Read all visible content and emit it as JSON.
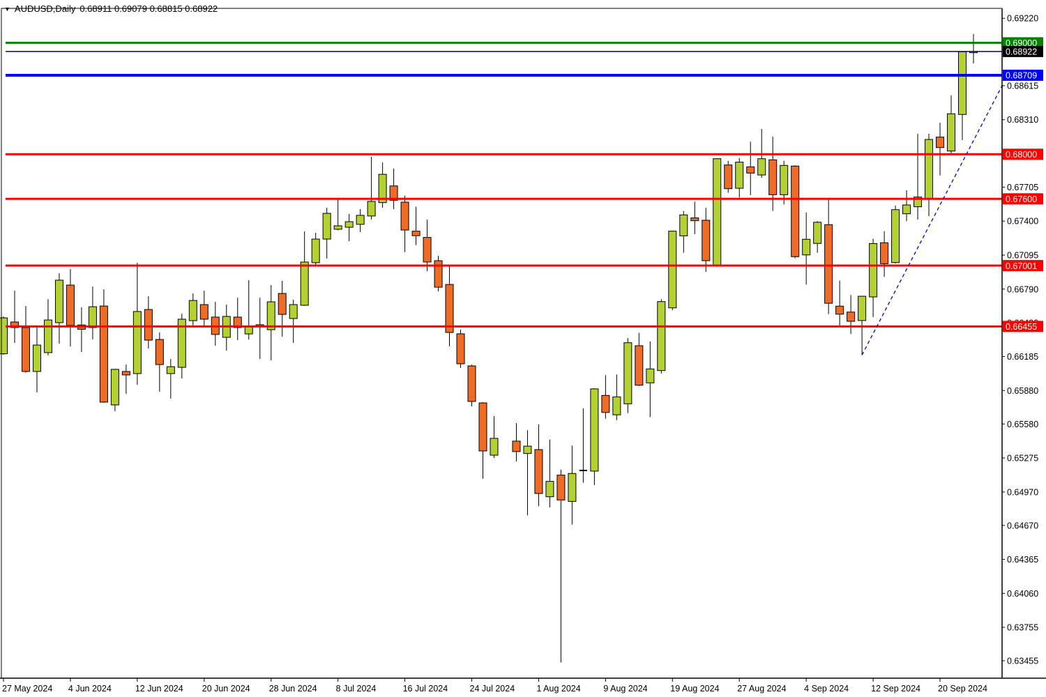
{
  "window": {
    "app": "trading-chart-terminal",
    "title_symbol": "AUDUSD,Daily",
    "title_quotes": "0.68911 0.69079 0.68815 0.68922"
  },
  "colors": {
    "background": "#ffffff",
    "bull_body": "#b3d133",
    "bear_body": "#ef6c26",
    "candle_outline": "#000000",
    "wick": "#000000",
    "axis": "#000000",
    "level_red": "#ff0000",
    "level_green": "#028402",
    "level_blue": "#0000ff",
    "current_price_line": "#000080",
    "trendline_blue": "#0000cc",
    "badge_text": "#ffffff"
  },
  "chart_data": {
    "type": "candlestick",
    "symbol": "AUDUSD",
    "period": "Daily",
    "current_ohlc": {
      "open": 0.68911,
      "high": 0.69079,
      "low": 0.68815,
      "close": 0.68922
    },
    "ylim": [
      0.63299,
      0.69309
    ],
    "grid": false,
    "y_ticks": [
      0.6922,
      0.68615,
      0.6831,
      0.67705,
      0.674,
      0.67095,
      0.6679,
      0.6649,
      0.66185,
      0.6588,
      0.6558,
      0.65275,
      0.6497,
      0.6467,
      0.64365,
      0.6406,
      0.63755,
      0.63455
    ],
    "x_labels": [
      {
        "slot": 0,
        "label": "27 May 2024"
      },
      {
        "slot": 6,
        "label": "4 Jun 2024"
      },
      {
        "slot": 12,
        "label": "12 Jun 2024"
      },
      {
        "slot": 18,
        "label": "20 Jun 2024"
      },
      {
        "slot": 24,
        "label": "28 Jun 2024"
      },
      {
        "slot": 30,
        "label": "8 Jul 2024"
      },
      {
        "slot": 36,
        "label": "16 Jul 2024"
      },
      {
        "slot": 42,
        "label": "24 Jul 2024"
      },
      {
        "slot": 48,
        "label": "1 Aug 2024"
      },
      {
        "slot": 54,
        "label": "9 Aug 2024"
      },
      {
        "slot": 60,
        "label": "19 Aug 2024"
      },
      {
        "slot": 66,
        "label": "27 Aug 2024"
      },
      {
        "slot": 72,
        "label": "4 Sep 2024"
      },
      {
        "slot": 78,
        "label": "12 Sep 2024"
      },
      {
        "slot": 84,
        "label": "20 Sep 2024"
      }
    ],
    "h_lines": [
      {
        "price": 0.69,
        "badge": "0.69000",
        "color_key": "level_green",
        "width": 3
      },
      {
        "price": 0.68922,
        "badge": "0.68922",
        "color_key": "current_price_line",
        "width": 1.6,
        "badge_bg": "#000000"
      },
      {
        "price": 0.68709,
        "badge": "0.68709",
        "color_key": "level_blue",
        "width": 4
      },
      {
        "price": 0.68,
        "badge": "0.68000",
        "color_key": "level_red",
        "width": 3
      },
      {
        "price": 0.676,
        "badge": "0.67600",
        "color_key": "level_red",
        "width": 3
      },
      {
        "price": 0.67001,
        "badge": "0.67001",
        "color_key": "level_red",
        "width": 3
      },
      {
        "price": 0.66455,
        "badge": "0.66455",
        "color_key": "level_red",
        "width": 3
      }
    ],
    "trendline": {
      "style": "dashed",
      "from": {
        "slot": 77,
        "price": 0.66199
      },
      "to_right_edge_price": 0.68615
    },
    "columns": [
      "date",
      "open",
      "high",
      "low",
      "close"
    ],
    "candles": [
      [
        "2024-05-27",
        0.6621,
        0.66545,
        0.662,
        0.66532
      ],
      [
        "2024-05-28",
        0.66495,
        0.66776,
        0.66307,
        0.66445
      ],
      [
        "2024-05-29",
        0.66445,
        0.66638,
        0.6604,
        0.66051
      ],
      [
        "2024-05-30",
        0.66051,
        0.66457,
        0.65863,
        0.66288
      ],
      [
        "2024-05-31",
        0.6622,
        0.667,
        0.66195,
        0.66513
      ],
      [
        "2024-06-03",
        0.66489,
        0.66933,
        0.66301,
        0.6687
      ],
      [
        "2024-06-04",
        0.66826,
        0.6697,
        0.66276,
        0.66464
      ],
      [
        "2024-06-05",
        0.66468,
        0.66626,
        0.66226,
        0.6643
      ],
      [
        "2024-06-06",
        0.66445,
        0.66813,
        0.66339,
        0.66632
      ],
      [
        "2024-06-07",
        0.66638,
        0.66788,
        0.6577,
        0.65776
      ],
      [
        "2024-06-10",
        0.65751,
        0.66075,
        0.65694,
        0.6607
      ],
      [
        "2024-06-11",
        0.66051,
        0.66113,
        0.6585,
        0.6602
      ],
      [
        "2024-06-12",
        0.66032,
        0.67026,
        0.65932,
        0.66589
      ],
      [
        "2024-06-13",
        0.66607,
        0.66726,
        0.66257,
        0.66332
      ],
      [
        "2024-06-14",
        0.66338,
        0.66401,
        0.65869,
        0.66113
      ],
      [
        "2024-06-17",
        0.66032,
        0.66163,
        0.65807,
        0.66094
      ],
      [
        "2024-06-18",
        0.66088,
        0.6657,
        0.65988,
        0.6652
      ],
      [
        "2024-06-19",
        0.66507,
        0.66751,
        0.66445,
        0.66688
      ],
      [
        "2024-06-20",
        0.66651,
        0.66776,
        0.66451,
        0.6652
      ],
      [
        "2024-06-21",
        0.66539,
        0.66676,
        0.66282,
        0.66383
      ],
      [
        "2024-06-24",
        0.66357,
        0.66651,
        0.66238,
        0.66545
      ],
      [
        "2024-06-25",
        0.66539,
        0.66713,
        0.66332,
        0.66445
      ],
      [
        "2024-06-26",
        0.66388,
        0.6687,
        0.66338,
        0.66457
      ],
      [
        "2024-06-27",
        0.6647,
        0.66713,
        0.66163,
        0.66457
      ],
      [
        "2024-06-28",
        0.66426,
        0.66826,
        0.66151,
        0.66676
      ],
      [
        "2024-07-01",
        0.66751,
        0.66864,
        0.66363,
        0.66563
      ],
      [
        "2024-07-02",
        0.66526,
        0.66695,
        0.66307,
        0.66651
      ],
      [
        "2024-07-03",
        0.66645,
        0.67308,
        0.6664,
        0.67033
      ],
      [
        "2024-07-04",
        0.67027,
        0.67295,
        0.67008,
        0.67239
      ],
      [
        "2024-07-05",
        0.67239,
        0.6752,
        0.67064,
        0.6747
      ],
      [
        "2024-07-08",
        0.67327,
        0.67602,
        0.67318,
        0.67358
      ],
      [
        "2024-07-09",
        0.67345,
        0.67464,
        0.6722,
        0.67395
      ],
      [
        "2024-07-10",
        0.67371,
        0.67508,
        0.67302,
        0.67452
      ],
      [
        "2024-07-11",
        0.67446,
        0.67977,
        0.67414,
        0.67577
      ],
      [
        "2024-07-12",
        0.67566,
        0.67926,
        0.6752,
        0.6782
      ],
      [
        "2024-07-15",
        0.67716,
        0.67872,
        0.67508,
        0.67587
      ],
      [
        "2024-07-16",
        0.6757,
        0.67629,
        0.67122,
        0.6732
      ],
      [
        "2024-07-17",
        0.6731,
        0.67529,
        0.67185,
        0.67269
      ],
      [
        "2024-07-18",
        0.67254,
        0.67414,
        0.6695,
        0.67033
      ],
      [
        "2024-07-19",
        0.67045,
        0.67089,
        0.6677,
        0.66807
      ],
      [
        "2024-07-22",
        0.66832,
        0.67008,
        0.66276,
        0.66401
      ],
      [
        "2024-07-23",
        0.66389,
        0.66427,
        0.66082,
        0.6612
      ],
      [
        "2024-07-24",
        0.66101,
        0.66113,
        0.65738,
        0.65782
      ],
      [
        "2024-07-25",
        0.65769,
        0.65775,
        0.65088,
        0.65338
      ],
      [
        "2024-07-26",
        0.653,
        0.65651,
        0.65275,
        0.65451
      ],
      [
        "2024-07-29",
        null,
        null,
        null,
        null
      ],
      [
        "2024-07-30",
        0.65426,
        0.65588,
        0.65244,
        0.65332
      ],
      [
        "2024-07-31",
        0.65315,
        0.65525,
        0.6476,
        0.65381
      ],
      [
        "2024-08-01",
        0.6535,
        0.65576,
        0.64843,
        0.64956
      ],
      [
        "2024-08-02",
        0.64927,
        0.6544,
        0.64831,
        0.65065
      ],
      [
        "2024-08-05",
        0.65121,
        0.65169,
        0.6344,
        0.64898
      ],
      [
        "2024-08-06",
        0.64885,
        0.65386,
        0.64677,
        0.65136
      ],
      [
        "2024-08-07",
        0.65163,
        0.6572,
        0.65052,
        0.65163
      ],
      [
        "2024-08-08",
        0.65157,
        0.659,
        0.65031,
        0.65895
      ],
      [
        "2024-08-09",
        0.65836,
        0.66018,
        0.65627,
        0.65683
      ],
      [
        "2024-08-12",
        0.65662,
        0.66024,
        0.65614,
        0.65823
      ],
      [
        "2024-08-13",
        0.65761,
        0.66351,
        0.65677,
        0.66309
      ],
      [
        "2024-08-14",
        0.66282,
        0.66397,
        0.6592,
        0.65928
      ],
      [
        "2024-08-15",
        0.65949,
        0.6632,
        0.65642,
        0.66074
      ],
      [
        "2024-08-16",
        0.66059,
        0.66699,
        0.66032,
        0.66678
      ],
      [
        "2024-08-19",
        0.66622,
        0.67315,
        0.66601,
        0.6731
      ],
      [
        "2024-08-20",
        0.67268,
        0.67491,
        0.67116,
        0.67456
      ],
      [
        "2024-08-21",
        0.67429,
        0.67575,
        0.67283,
        0.67404
      ],
      [
        "2024-08-22",
        0.67408,
        0.67519,
        0.66945,
        0.67045
      ],
      [
        "2024-08-23",
        0.66997,
        0.67965,
        0.6699,
        0.6796
      ],
      [
        "2024-08-26",
        0.67904,
        0.67941,
        0.67654,
        0.67691
      ],
      [
        "2024-08-27",
        0.67695,
        0.67966,
        0.67612,
        0.67929
      ],
      [
        "2024-08-28",
        0.67887,
        0.68113,
        0.67633,
        0.67831
      ],
      [
        "2024-08-29",
        0.67814,
        0.68227,
        0.67789,
        0.6796
      ],
      [
        "2024-08-30",
        0.6795,
        0.68158,
        0.67491,
        0.67637
      ],
      [
        "2024-09-02",
        0.67637,
        0.67941,
        0.6755,
        0.679
      ],
      [
        "2024-09-03",
        0.67894,
        0.679,
        0.67066,
        0.67081
      ],
      [
        "2024-09-04",
        0.67097,
        0.67477,
        0.6683,
        0.67237
      ],
      [
        "2024-09-05",
        0.672,
        0.674,
        0.67116,
        0.6739
      ],
      [
        "2024-09-06",
        0.67368,
        0.67602,
        0.66565,
        0.66663
      ],
      [
        "2024-09-09",
        0.66637,
        0.66866,
        0.66455,
        0.66565
      ],
      [
        "2024-09-10",
        0.66584,
        0.66737,
        0.66387,
        0.66501
      ],
      [
        "2024-09-11",
        0.66508,
        0.6673,
        0.66199,
        0.66726
      ],
      [
        "2024-09-12",
        0.6672,
        0.67241,
        0.66539,
        0.67199
      ],
      [
        "2024-09-13",
        0.67206,
        0.6731,
        0.669,
        0.67018
      ],
      [
        "2024-09-16",
        0.67028,
        0.67539,
        0.6702,
        0.67503
      ],
      [
        "2024-09-17",
        0.67466,
        0.67677,
        0.674,
        0.67545
      ],
      [
        "2024-09-18",
        0.67529,
        0.68185,
        0.67414,
        0.67616
      ],
      [
        "2024-09-19",
        0.67598,
        0.68185,
        0.67445,
        0.68133
      ],
      [
        "2024-09-20",
        0.68154,
        0.68283,
        0.6781,
        0.6806
      ],
      [
        "2024-09-23",
        0.68029,
        0.68529,
        0.68008,
        0.68363
      ],
      [
        "2024-09-24",
        0.68357,
        0.68925,
        0.68127,
        0.6892
      ],
      [
        "2024-09-25",
        0.68911,
        0.69079,
        0.68815,
        0.68922
      ]
    ]
  }
}
